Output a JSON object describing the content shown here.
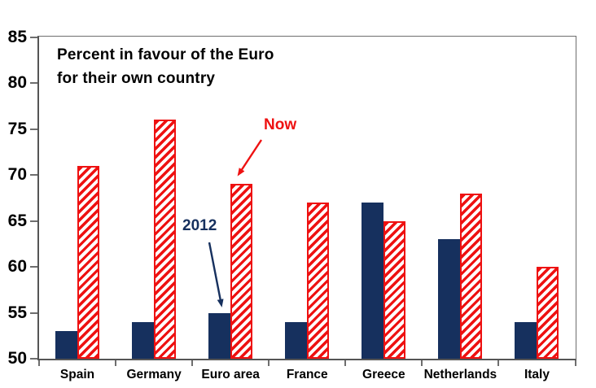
{
  "chart_data": {
    "type": "bar",
    "title_line1": "Percent in favour of the Euro",
    "title_line2": "for their own country",
    "xlabel": "",
    "ylabel": "",
    "categories": [
      "Spain",
      "Germany",
      "Euro area",
      "France",
      "Greece",
      "Netherlands",
      "Italy"
    ],
    "series": [
      {
        "name": "2012",
        "values": [
          53,
          54,
          55,
          54,
          67,
          63,
          54
        ],
        "color": "#16305E",
        "pattern": "solid"
      },
      {
        "name": "Now",
        "values": [
          71,
          76,
          69,
          67,
          65,
          68,
          60
        ],
        "color": "#EE1111",
        "pattern": "diagonal-hatch"
      }
    ],
    "ylim": [
      50,
      85
    ],
    "yticks": [
      85,
      80,
      75,
      70,
      65,
      60,
      55,
      50
    ],
    "grid": false,
    "legend": {
      "visible": false,
      "style": "in-chart-annotations"
    },
    "annotations": [
      {
        "text": "2012",
        "series": "2012",
        "color": "#16305E"
      },
      {
        "text": "Now",
        "series": "Now",
        "color": "#EE1111"
      }
    ]
  }
}
